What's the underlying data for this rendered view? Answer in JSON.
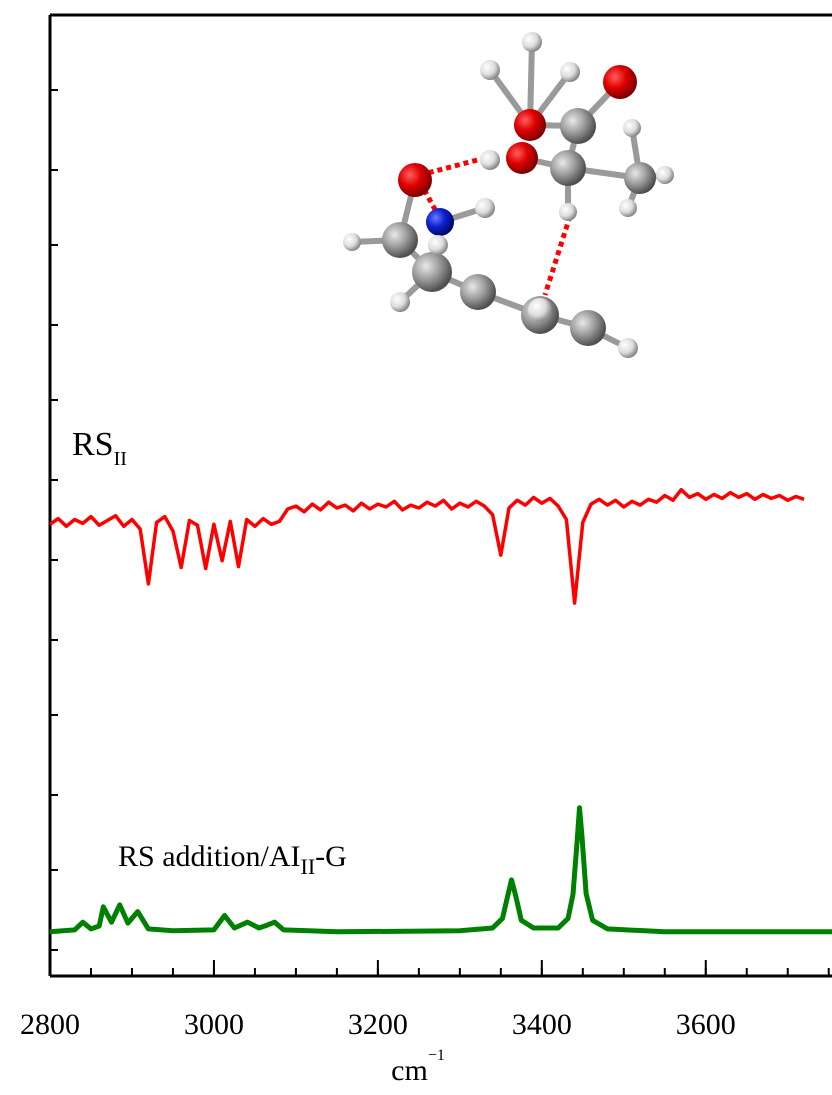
{
  "chart_data": {
    "type": "line",
    "xlabel": {
      "text": "cm",
      "sup": "−1"
    },
    "xlim": [
      2800,
      3754
    ],
    "xticks": [
      2800,
      3000,
      3200,
      3400,
      3600
    ],
    "ylim": [
      0,
      100
    ],
    "annotations": [
      {
        "text": "RS",
        "sub": "II"
      },
      {
        "text": "RS addition/AI",
        "sub": "II",
        "tail": "-G"
      }
    ],
    "series": [
      {
        "name": "RS",
        "color": "#ff0000",
        "x": [
          2800,
          2810,
          2820,
          2830,
          2840,
          2850,
          2860,
          2870,
          2880,
          2890,
          2900,
          2910,
          2920,
          2930,
          2940,
          2950,
          2960,
          2970,
          2980,
          2990,
          3000,
          3010,
          3020,
          3030,
          3040,
          3050,
          3060,
          3070,
          3080,
          3090,
          3100,
          3110,
          3120,
          3130,
          3140,
          3150,
          3160,
          3170,
          3180,
          3190,
          3200,
          3210,
          3220,
          3230,
          3240,
          3250,
          3260,
          3270,
          3280,
          3290,
          3300,
          3310,
          3320,
          3330,
          3340,
          3350,
          3360,
          3370,
          3380,
          3390,
          3400,
          3410,
          3420,
          3430,
          3440,
          3450,
          3460,
          3470,
          3480,
          3490,
          3500,
          3510,
          3520,
          3530,
          3540,
          3550,
          3560,
          3570,
          3580,
          3590,
          3600,
          3610,
          3620,
          3630,
          3640,
          3650,
          3660,
          3670,
          3680,
          3690,
          3700,
          3710,
          3720
        ],
        "values": [
          47.0,
          47.6,
          46.8,
          47.5,
          47.1,
          47.8,
          46.9,
          47.4,
          47.9,
          46.8,
          47.5,
          46.5,
          40.8,
          47.2,
          47.8,
          46.3,
          42.5,
          47.4,
          46.9,
          42.4,
          47.0,
          43.2,
          47.3,
          42.6,
          47.5,
          46.8,
          47.6,
          47.0,
          47.3,
          48.6,
          48.9,
          48.3,
          49.1,
          48.5,
          49.3,
          48.7,
          49.0,
          48.4,
          49.2,
          48.6,
          49.1,
          48.8,
          49.4,
          48.5,
          49.0,
          48.7,
          49.3,
          48.9,
          49.5,
          48.6,
          49.2,
          48.8,
          49.4,
          48.9,
          48.0,
          43.8,
          48.7,
          49.5,
          49.0,
          49.8,
          49.2,
          49.7,
          48.9,
          47.5,
          38.8,
          47.2,
          49.1,
          49.6,
          49.0,
          49.5,
          48.8,
          49.4,
          49.0,
          49.6,
          49.3,
          50.0,
          49.5,
          50.6,
          49.8,
          50.2,
          49.6,
          50.1,
          49.7,
          50.3,
          49.8,
          50.2,
          49.6,
          50.1,
          49.7,
          50.0,
          49.5,
          49.9,
          49.6
        ]
      },
      {
        "name": "RS addition",
        "color": "#008000",
        "x": [
          2800,
          2830,
          2840,
          2850,
          2860,
          2865,
          2875,
          2885,
          2895,
          2907,
          2920,
          2950,
          3000,
          3013,
          3025,
          3041,
          3055,
          3065,
          3074,
          3085,
          3150,
          3300,
          3340,
          3352,
          3358,
          3363,
          3368,
          3375,
          3390,
          3420,
          3432,
          3438,
          3443,
          3446,
          3449,
          3454,
          3462,
          3480,
          3550,
          3754
        ],
        "values": [
          4.6,
          4.8,
          5.6,
          4.9,
          5.2,
          7.2,
          5.6,
          7.4,
          5.5,
          6.7,
          4.9,
          4.7,
          4.8,
          6.3,
          5.0,
          5.6,
          5.0,
          5.3,
          5.6,
          4.8,
          4.6,
          4.7,
          5.0,
          6.0,
          8.2,
          10.0,
          8.4,
          5.8,
          5.0,
          5.0,
          6.0,
          8.5,
          14.0,
          17.5,
          14.5,
          8.6,
          5.8,
          4.9,
          4.6,
          4.6
        ]
      }
    ]
  }
}
